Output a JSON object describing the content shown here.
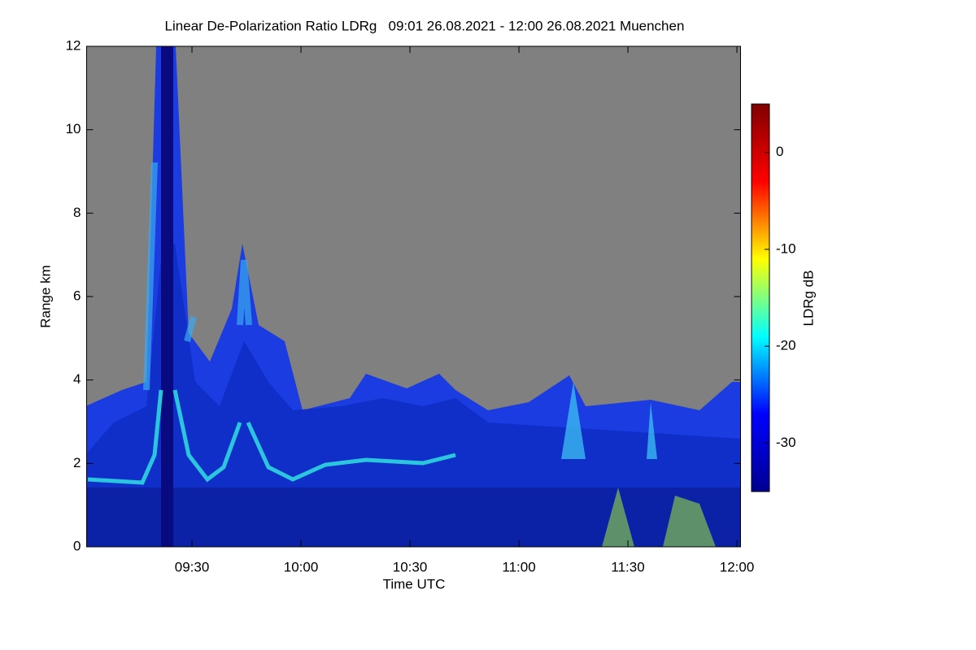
{
  "chart_data": {
    "type": "heatmap",
    "title": "Linear De-Polarization Ratio LDRg   09:01 26.08.2021 - 12:00 26.08.2021 Muenchen",
    "x_label": "Time UTC",
    "y_label": "Range km",
    "colorbar_label": "LDRg dB",
    "xlim": [
      541,
      721
    ],
    "xticks": [
      {
        "value": 570,
        "label": "09:30"
      },
      {
        "value": 600,
        "label": "10:00"
      },
      {
        "value": 630,
        "label": "10:30"
      },
      {
        "value": 660,
        "label": "11:00"
      },
      {
        "value": 690,
        "label": "11:30"
      },
      {
        "value": 720,
        "label": "12:00"
      }
    ],
    "ylim": [
      0,
      12
    ],
    "yticks": [
      0,
      2,
      4,
      6,
      8,
      10,
      12
    ],
    "clim": [
      -35,
      5
    ],
    "cticks": [
      0,
      -10,
      -20,
      -30
    ],
    "colorscale": [
      "#00008f",
      "#0000ff",
      "#00ffff",
      "#ffff00",
      "#ff0000",
      "#800000"
    ],
    "background": "#808080"
  }
}
